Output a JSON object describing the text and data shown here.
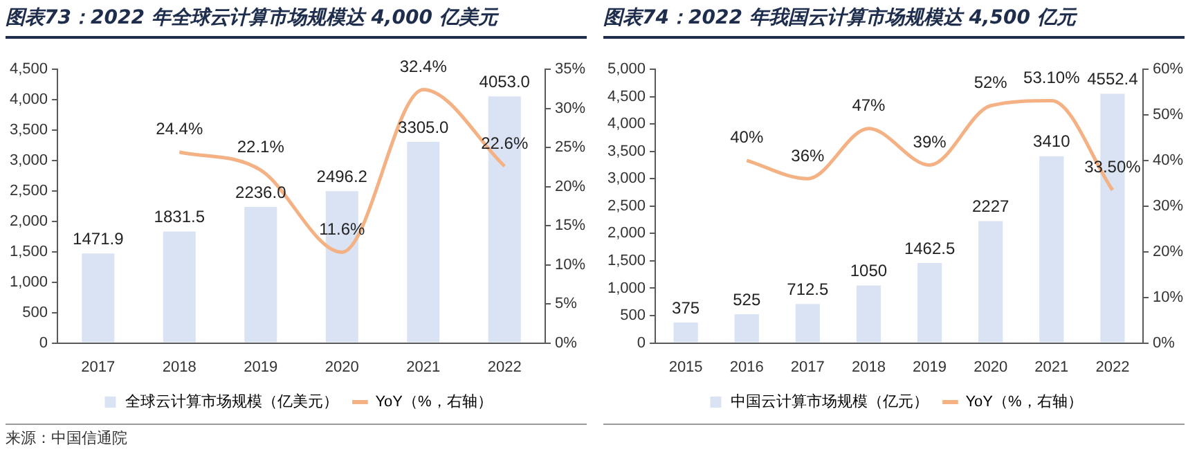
{
  "chart_data": [
    {
      "type": "bar",
      "title": "图表73：2022 年全球云计算市场规模达 4,000 亿美元",
      "categories": [
        "2017",
        "2018",
        "2019",
        "2020",
        "2021",
        "2022"
      ],
      "series": [
        {
          "name": "全球云计算市场规模（亿美元）",
          "color": "#dae3f3",
          "values": [
            1471.9,
            1831.5,
            2236.0,
            2496.2,
            3305.0,
            4053.0
          ],
          "value_labels": [
            "1471.9",
            "1831.5",
            "2236.0",
            "2496.2",
            "3305.0",
            "4053.0"
          ]
        },
        {
          "name": "YoY（%，右轴）",
          "type": "line",
          "axis": "y2",
          "color": "#f4b183",
          "values": [
            null,
            24.4,
            22.1,
            11.6,
            32.4,
            22.6
          ],
          "value_labels": [
            null,
            "24.4%",
            "22.1%",
            "11.6%",
            "32.4%",
            "22.6%"
          ]
        }
      ],
      "ylim": [
        0,
        4500
      ],
      "yticks": [
        0,
        {
          "value": 500,
          "label": "500"
        },
        {
          "value": 1000,
          "label": "1,000"
        },
        {
          "value": 1500,
          "label": "1,500"
        },
        {
          "value": 2000,
          "label": "2,000"
        },
        {
          "value": 2500,
          "label": "2,500"
        },
        {
          "value": 3000,
          "label": "3,000"
        },
        {
          "value": 3500,
          "label": "3,500"
        },
        {
          "value": 4000,
          "label": "4,000"
        },
        {
          "value": 4500,
          "label": "4,500"
        }
      ],
      "y2lim": [
        0,
        35
      ],
      "y2ticks": [
        {
          "value": 0,
          "label": "0%"
        },
        {
          "value": 5,
          "label": "5%"
        },
        {
          "value": 10,
          "label": "10%"
        },
        {
          "value": 15,
          "label": "15%"
        },
        {
          "value": 20,
          "label": "20%"
        },
        {
          "value": 25,
          "label": "25%"
        },
        {
          "value": 30,
          "label": "30%"
        },
        {
          "value": 35,
          "label": "35%"
        }
      ],
      "legend": "bottom",
      "annotations": [
        "来源：中国信通院"
      ]
    },
    {
      "type": "bar",
      "title": "图表74：2022 年我国云计算市场规模达 4,500 亿元",
      "categories": [
        "2015",
        "2016",
        "2017",
        "2018",
        "2019",
        "2020",
        "2021",
        "2022"
      ],
      "series": [
        {
          "name": "中国云计算市场规模（亿元）",
          "color": "#dae3f3",
          "values": [
            375,
            525,
            712.5,
            1050,
            1462.5,
            2227,
            3410,
            4552.4
          ],
          "value_labels": [
            "375",
            "525",
            "712.5",
            "1050",
            "1462.5",
            "2227",
            "3410",
            "4552.4"
          ]
        },
        {
          "name": "YoY（%，右轴）",
          "type": "line",
          "axis": "y2",
          "color": "#f4b183",
          "values": [
            null,
            40,
            36,
            47,
            39,
            52,
            53.1,
            33.5
          ],
          "value_labels": [
            null,
            "40%",
            "36%",
            "47%",
            "39%",
            "52%",
            "53.10%",
            "33.50%"
          ]
        }
      ],
      "ylim": [
        0,
        5000
      ],
      "yticks": [
        0,
        {
          "value": 500,
          "label": "500"
        },
        {
          "value": 1000,
          "label": "1,000"
        },
        {
          "value": 1500,
          "label": "1,500"
        },
        {
          "value": 2000,
          "label": "2,000"
        },
        {
          "value": 2500,
          "label": "2,500"
        },
        {
          "value": 3000,
          "label": "3,000"
        },
        {
          "value": 3500,
          "label": "3,500"
        },
        {
          "value": 4000,
          "label": "4,000"
        },
        {
          "value": 4500,
          "label": "4,500"
        },
        {
          "value": 5000,
          "label": "5,000"
        }
      ],
      "y2lim": [
        0,
        60
      ],
      "y2ticks": [
        {
          "value": 0,
          "label": "0%"
        },
        {
          "value": 10,
          "label": "10%"
        },
        {
          "value": 20,
          "label": "20%"
        },
        {
          "value": 30,
          "label": "30%"
        },
        {
          "value": 40,
          "label": "40%"
        },
        {
          "value": 50,
          "label": "50%"
        },
        {
          "value": 60,
          "label": "60%"
        }
      ],
      "legend": "bottom"
    }
  ]
}
